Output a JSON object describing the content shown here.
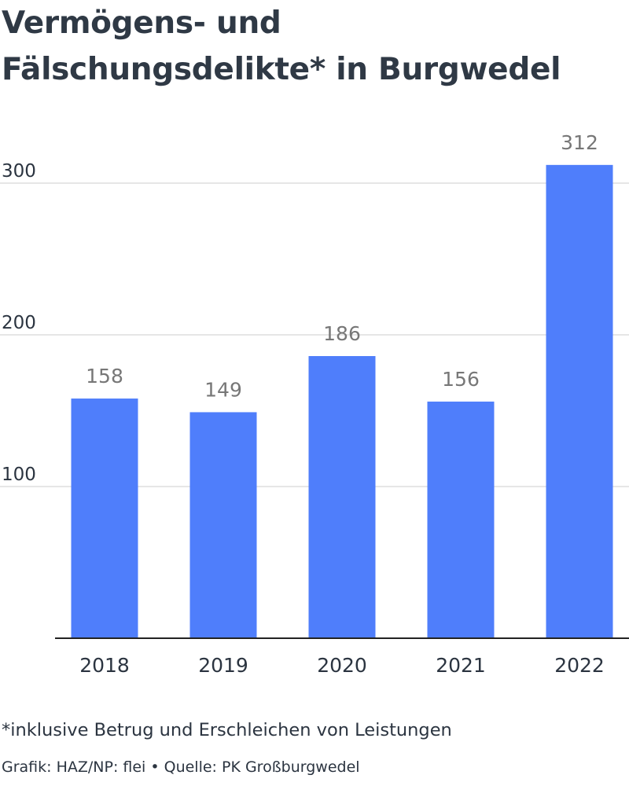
{
  "header": {
    "title_line1": "Vermögens- und",
    "title_line2": "Fälschungsdelikte* in Burgwedel"
  },
  "chart_data": {
    "type": "bar",
    "categories": [
      "2018",
      "2019",
      "2020",
      "2021",
      "2022"
    ],
    "values": [
      158,
      149,
      186,
      156,
      312
    ],
    "y_ticks": [
      100,
      200,
      300
    ],
    "ylim": [
      0,
      325
    ],
    "xlabel": "",
    "ylabel": "",
    "grid": true,
    "data_labels": true,
    "bar_color": "#4f7efb",
    "grid_color": "#dddddd",
    "axis_color": "#222222",
    "label_color": "#777777"
  },
  "footer": {
    "note": "*inklusive Betrug und Erschleichen von Leistungen",
    "credit": "Grafik: HAZ/NP: flei • Quelle: PK Großburgwedel"
  }
}
